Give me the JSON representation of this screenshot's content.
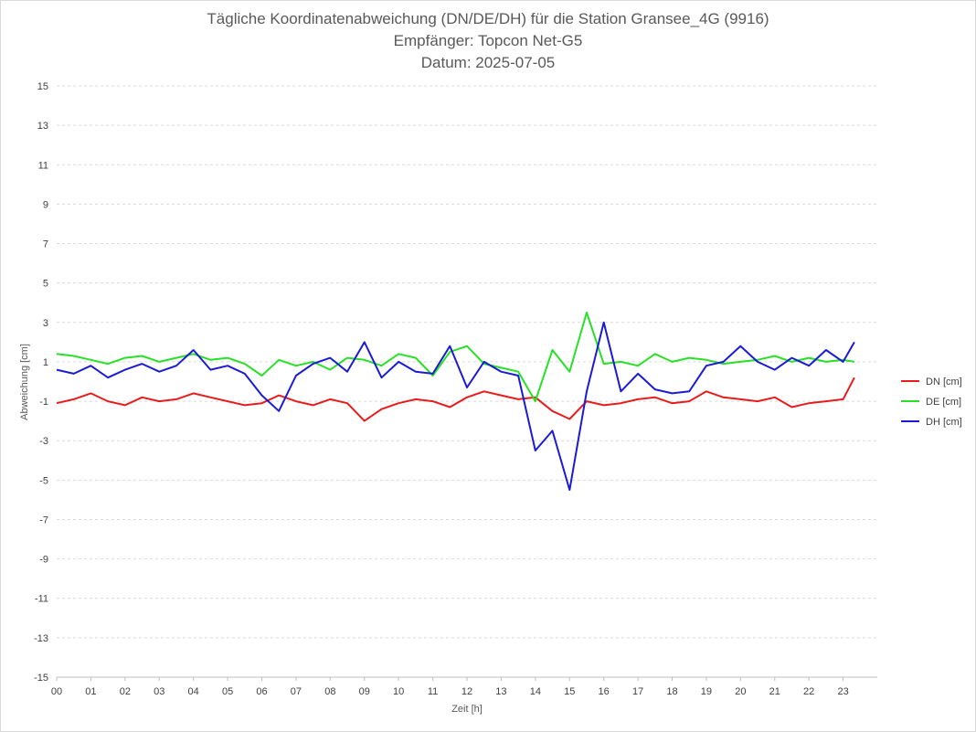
{
  "chart_data": {
    "type": "line",
    "title_lines": [
      "Tägliche Koordinatenabweichung (DN/DE/DH) für die Station Gransee_4G (9916)",
      "Empfänger: Topcon Net-G5",
      "Datum: 2025-07-05"
    ],
    "xlabel": "Zeit [h]",
    "ylabel": "Abweichung [cm]",
    "xlim": [
      0,
      24
    ],
    "ylim": [
      -15,
      15
    ],
    "x_tick_labels": [
      "00",
      "01",
      "02",
      "03",
      "04",
      "05",
      "06",
      "07",
      "08",
      "09",
      "10",
      "11",
      "12",
      "13",
      "14",
      "15",
      "16",
      "17",
      "18",
      "19",
      "20",
      "21",
      "22",
      "23"
    ],
    "y_tick_labels": [
      "15",
      "13",
      "11",
      "9",
      "7",
      "5",
      "3",
      "1",
      "-1",
      "-3",
      "-5",
      "-7",
      "-9",
      "-11",
      "-13",
      "-15"
    ],
    "grid": "horizontal dashed",
    "legend_position": "right",
    "x": [
      0,
      0.5,
      1,
      1.5,
      2,
      2.5,
      3,
      3.5,
      4,
      4.5,
      5,
      5.5,
      6,
      6.5,
      7,
      7.5,
      8,
      8.5,
      9,
      9.5,
      10,
      10.5,
      11,
      11.5,
      12,
      12.5,
      13,
      13.5,
      14,
      14.5,
      15,
      15.5,
      16,
      16.5,
      17,
      17.5,
      18,
      18.5,
      19,
      19.5,
      20,
      20.5,
      21,
      21.5,
      22,
      22.5,
      23,
      23.33
    ],
    "series": [
      {
        "name": "DN [cm]",
        "color": "#e81c1c",
        "values": [
          -1.1,
          -0.9,
          -0.6,
          -1.0,
          -1.2,
          -0.8,
          -1.0,
          -0.9,
          -0.6,
          -0.8,
          -1.0,
          -1.2,
          -1.1,
          -0.7,
          -1.0,
          -1.2,
          -0.9,
          -1.1,
          -2.0,
          -1.4,
          -1.1,
          -0.9,
          -1.0,
          -1.3,
          -0.8,
          -0.5,
          -0.7,
          -0.9,
          -0.8,
          -1.5,
          -1.9,
          -1.0,
          -1.2,
          -1.1,
          -0.9,
          -0.8,
          -1.1,
          -1.0,
          -0.5,
          -0.8,
          -0.9,
          -1.0,
          -0.8,
          -1.3,
          -1.1,
          -1.0,
          -0.9,
          0.2
        ]
      },
      {
        "name": "DE [cm]",
        "color": "#28e028",
        "values": [
          1.4,
          1.3,
          1.1,
          0.9,
          1.2,
          1.3,
          1.0,
          1.2,
          1.4,
          1.1,
          1.2,
          0.9,
          0.3,
          1.1,
          0.8,
          1.0,
          0.6,
          1.2,
          1.1,
          0.8,
          1.4,
          1.2,
          0.3,
          1.5,
          1.8,
          0.9,
          0.7,
          0.5,
          -1.0,
          1.6,
          0.5,
          3.5,
          0.9,
          1.0,
          0.8,
          1.4,
          1.0,
          1.2,
          1.1,
          0.9,
          1.0,
          1.1,
          1.3,
          1.0,
          1.2,
          1.0,
          1.1,
          1.0
        ]
      },
      {
        "name": "DH [cm]",
        "color": "#1b1bd6",
        "values": [
          0.6,
          0.4,
          0.8,
          0.2,
          0.6,
          0.9,
          0.5,
          0.8,
          1.6,
          0.6,
          0.8,
          0.4,
          -0.7,
          -1.5,
          0.3,
          0.9,
          1.2,
          0.5,
          2.0,
          0.2,
          1.0,
          0.5,
          0.4,
          1.8,
          -0.3,
          1.0,
          0.5,
          0.3,
          -3.5,
          -2.5,
          -5.5,
          -0.5,
          3.0,
          -0.5,
          0.4,
          -0.4,
          -0.6,
          -0.5,
          0.8,
          1.0,
          1.8,
          1.0,
          0.6,
          1.2,
          0.8,
          1.6,
          1.0,
          2.0
        ]
      }
    ]
  }
}
